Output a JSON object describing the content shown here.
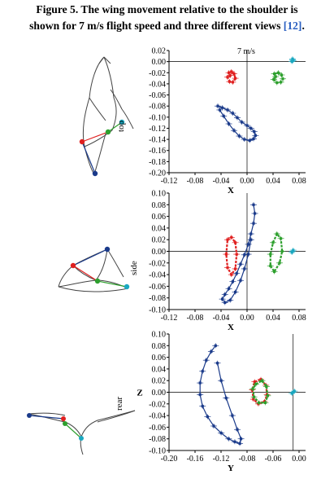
{
  "caption": {
    "line1": "Figure 5. The wing movement relative to the shoulder is",
    "line2_prefix": "shown for 7 m/s flight speed and three different views ",
    "ref": "[12]",
    "line2_suffix": "."
  },
  "colors": {
    "hand": "#e02020",
    "elbow": "#2ea02e",
    "wingtip": "#1a3a8a",
    "shoulder": "#1aa8c0",
    "axis": "#000000",
    "grid": "#000000"
  },
  "chart_data": [
    {
      "type": "scatter",
      "view_label": "top",
      "speed_label": "7 m/s",
      "xlabel": "X",
      "ylabel": "",
      "xlim": [
        -0.12,
        0.09
      ],
      "ylim": [
        -0.2,
        0.02
      ],
      "xticks": [
        "-0.12",
        "-0.08",
        "-0.04",
        "0.00",
        "0.04",
        "0.08"
      ],
      "yticks": [
        "0.02",
        "0.00",
        "-0.02",
        "-0.04",
        "-0.06",
        "-0.08",
        "-0.10",
        "-0.12",
        "-0.14",
        "-0.16",
        "-0.18",
        "-0.20"
      ],
      "series": [
        {
          "marker": "shoulder",
          "x": [
            0.07,
            0.071,
            0.069,
            0.07
          ],
          "y": [
            0.005,
            0.002,
            0.0,
            0.003
          ]
        },
        {
          "marker": "hand",
          "x": [
            -0.028,
            -0.024,
            -0.02,
            -0.018,
            -0.022,
            -0.027,
            -0.03,
            -0.026
          ],
          "y": [
            -0.02,
            -0.018,
            -0.022,
            -0.03,
            -0.037,
            -0.036,
            -0.028,
            -0.025
          ]
        },
        {
          "marker": "elbow",
          "x": [
            0.042,
            0.048,
            0.053,
            0.055,
            0.052,
            0.046,
            0.041,
            0.044
          ],
          "y": [
            -0.022,
            -0.02,
            -0.024,
            -0.031,
            -0.037,
            -0.038,
            -0.032,
            -0.027
          ]
        },
        {
          "marker": "wingtip",
          "x": [
            -0.045,
            -0.038,
            -0.03,
            -0.022,
            -0.015,
            -0.008,
            0.0,
            0.006,
            0.011,
            0.013,
            0.01,
            0.004,
            -0.004,
            -0.012,
            -0.02,
            -0.028,
            -0.036,
            -0.042
          ],
          "y": [
            -0.08,
            -0.083,
            -0.087,
            -0.093,
            -0.101,
            -0.109,
            -0.115,
            -0.12,
            -0.126,
            -0.133,
            -0.139,
            -0.142,
            -0.14,
            -0.134,
            -0.124,
            -0.112,
            -0.098,
            -0.087
          ]
        }
      ]
    },
    {
      "type": "scatter",
      "view_label": "side",
      "speed_label": "",
      "xlabel": "X",
      "ylabel": "",
      "xlim": [
        -0.12,
        0.09
      ],
      "ylim": [
        -0.1,
        0.1
      ],
      "xticks": [
        "-0.12",
        "-0.08",
        "-0.04",
        "0.00",
        "0.04",
        "0.08"
      ],
      "yticks": [
        "0.10",
        "0.08",
        "0.06",
        "0.04",
        "0.02",
        "0.00",
        "-0.02",
        "-0.04",
        "-0.06",
        "-0.08",
        "-0.10"
      ],
      "series": [
        {
          "marker": "shoulder",
          "x": [
            0.07,
            0.071,
            0.069
          ],
          "y": [
            0.0,
            0.002,
            -0.002
          ]
        },
        {
          "marker": "hand",
          "x": [
            -0.03,
            -0.024,
            -0.018,
            -0.016,
            -0.018,
            -0.024,
            -0.03,
            -0.032
          ],
          "y": [
            0.02,
            0.024,
            0.015,
            -0.005,
            -0.03,
            -0.04,
            -0.028,
            -0.005
          ]
        },
        {
          "marker": "elbow",
          "x": [
            0.04,
            0.046,
            0.052,
            0.054,
            0.05,
            0.042,
            0.036,
            0.036
          ],
          "y": [
            0.015,
            0.03,
            0.022,
            0.0,
            -0.02,
            -0.035,
            -0.025,
            -0.005
          ]
        },
        {
          "marker": "wingtip",
          "x": [
            0.01,
            0.012,
            0.01,
            0.006,
            0.002,
            -0.004,
            -0.01,
            -0.016,
            -0.022,
            -0.028,
            -0.034,
            -0.038,
            -0.034,
            -0.026,
            -0.018,
            -0.01,
            -0.004,
            0.002,
            0.006
          ],
          "y": [
            0.08,
            0.065,
            0.048,
            0.03,
            0.012,
            -0.006,
            -0.022,
            -0.038,
            -0.052,
            -0.064,
            -0.074,
            -0.082,
            -0.088,
            -0.084,
            -0.07,
            -0.05,
            -0.03,
            -0.005,
            0.02
          ]
        }
      ]
    },
    {
      "type": "scatter",
      "view_label": "rear",
      "speed_label": "",
      "xlabel": "Y",
      "ylabel": "Z",
      "xlim": [
        -0.2,
        0.02
      ],
      "ylim": [
        -0.1,
        0.1
      ],
      "xticks": [
        "-0.20",
        "-0.16",
        "-0.12",
        "-0.08",
        "-0.06",
        "0.00"
      ],
      "yticks": [
        "0.10",
        "0.08",
        "0.06",
        "0.04",
        "0.02",
        "0.00",
        "-0.02",
        "-0.04",
        "-0.06",
        "-0.08",
        "-0.10"
      ],
      "series": [
        {
          "marker": "shoulder",
          "x": [
            0.0,
            0.002,
            -0.002
          ],
          "y": [
            0.0,
            0.002,
            -0.002
          ]
        },
        {
          "marker": "hand",
          "x": [
            -0.062,
            -0.052,
            -0.044,
            -0.042,
            -0.046,
            -0.056,
            -0.064,
            -0.066
          ],
          "y": [
            0.018,
            0.022,
            0.012,
            -0.004,
            -0.016,
            -0.02,
            -0.012,
            0.004
          ]
        },
        {
          "marker": "elbow",
          "x": [
            -0.06,
            -0.05,
            -0.043,
            -0.041,
            -0.045,
            -0.055,
            -0.063,
            -0.065
          ],
          "y": [
            0.014,
            0.02,
            0.01,
            -0.006,
            -0.018,
            -0.018,
            -0.008,
            0.006
          ]
        },
        {
          "marker": "wingtip",
          "x": [
            -0.125,
            -0.132,
            -0.14,
            -0.146,
            -0.15,
            -0.15,
            -0.146,
            -0.138,
            -0.128,
            -0.116,
            -0.104,
            -0.094,
            -0.086,
            -0.084,
            -0.09,
            -0.098,
            -0.108,
            -0.116,
            -0.122
          ],
          "y": [
            0.08,
            0.07,
            0.055,
            0.036,
            0.016,
            -0.004,
            -0.024,
            -0.042,
            -0.058,
            -0.07,
            -0.08,
            -0.085,
            -0.088,
            -0.08,
            -0.064,
            -0.04,
            -0.01,
            0.02,
            0.05
          ]
        }
      ]
    }
  ]
}
